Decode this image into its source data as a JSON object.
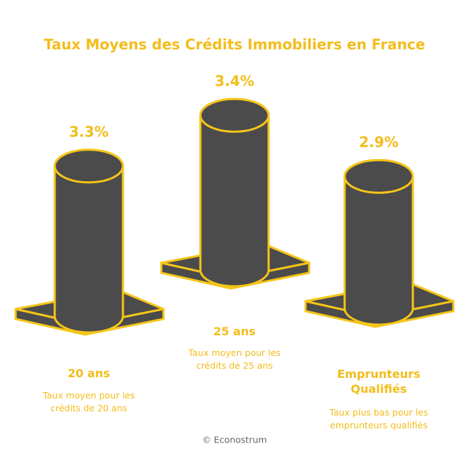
{
  "chart_data": {
    "type": "pillar",
    "title": "Taux Moyens des Crédits Immobiliers en France",
    "categories": [
      "20 ans",
      "25 ans",
      "Emprunteurs Qualifiés"
    ],
    "descriptions": [
      "Taux moyen pour les crédits de 20 ans",
      "Taux moyen pour les crédits de 25 ans",
      "Taux plus bas pour les emprunteurs qualifiés"
    ],
    "values": [
      3.3,
      3.4,
      2.9
    ],
    "value_labels": [
      "3.3%",
      "3.4%",
      "2.9%"
    ],
    "color": "#4b4b4b",
    "outline_color": "#f5c518",
    "source": "© Econostrum"
  }
}
